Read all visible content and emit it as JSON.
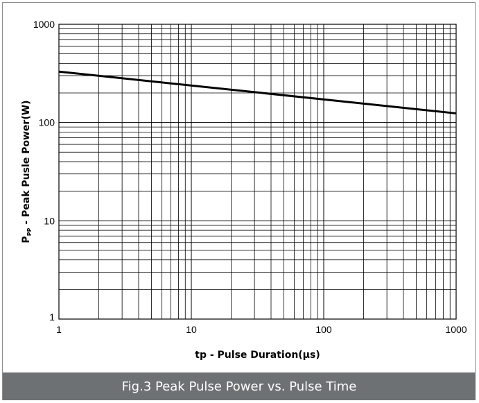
{
  "figure": {
    "caption": "Fig.3 Peak Pulse Power vs. Pulse Time",
    "caption_bg": "#6e7173"
  },
  "chart_data": {
    "type": "line",
    "title": "",
    "xlabel": "tp - Pulse Duration(μs)",
    "ylabel_main": "P",
    "ylabel_sub": "PP",
    "ylabel_rest": " - Peak Pusle Power(W)",
    "x_scale": "log",
    "y_scale": "log",
    "xlim": [
      1,
      1000
    ],
    "ylim": [
      1,
      1000
    ],
    "x_ticks": [
      1,
      10,
      100,
      1000
    ],
    "x_tick_labels": [
      "1",
      "10",
      "100",
      "1000"
    ],
    "y_ticks": [
      1,
      10,
      100,
      1000
    ],
    "y_tick_labels": [
      "1",
      "10",
      "100",
      "1000"
    ],
    "grid": true,
    "series": [
      {
        "x": [
          1,
          1000
        ],
        "y": [
          330,
          124
        ],
        "color": "#000000"
      }
    ]
  }
}
